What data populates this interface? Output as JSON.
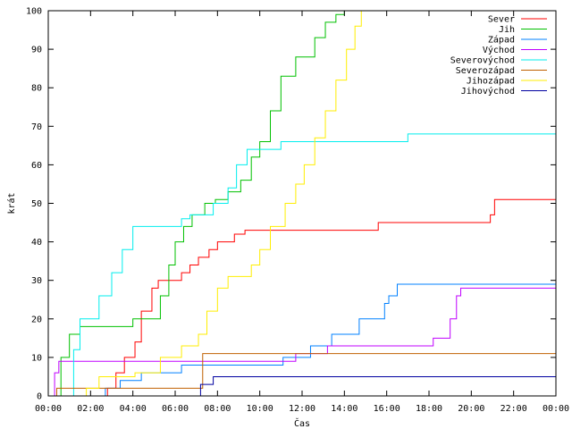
{
  "chart_data": {
    "type": "line",
    "title": "",
    "xlabel": "Čas",
    "ylabel": "krát",
    "xlim": [
      0,
      24
    ],
    "ylim": [
      0,
      100
    ],
    "x_ticks": [
      "00:00",
      "02:00",
      "04:00",
      "06:00",
      "08:00",
      "10:00",
      "12:00",
      "14:00",
      "16:00",
      "18:00",
      "20:00",
      "22:00",
      "00:00"
    ],
    "y_ticks": [
      "0",
      "10",
      "20",
      "30",
      "40",
      "50",
      "60",
      "70",
      "80",
      "90",
      "100"
    ],
    "grid": false,
    "legend_position": "top-right",
    "series": [
      {
        "name": "Sever",
        "color": "#ff0000",
        "points": [
          [
            0,
            0
          ],
          [
            2.8,
            2
          ],
          [
            3.2,
            6
          ],
          [
            3.6,
            10
          ],
          [
            4.1,
            14
          ],
          [
            4.4,
            22
          ],
          [
            4.9,
            28
          ],
          [
            5.2,
            30
          ],
          [
            6.3,
            32
          ],
          [
            6.7,
            34
          ],
          [
            7.1,
            36
          ],
          [
            7.6,
            38
          ],
          [
            8.0,
            40
          ],
          [
            8.8,
            42
          ],
          [
            9.3,
            43
          ],
          [
            15.6,
            45
          ],
          [
            20.9,
            47
          ],
          [
            21.1,
            51
          ],
          [
            24,
            51
          ]
        ]
      },
      {
        "name": "Jih",
        "color": "#00c000",
        "points": [
          [
            0,
            0
          ],
          [
            0.6,
            10
          ],
          [
            1.0,
            16
          ],
          [
            1.5,
            18
          ],
          [
            4.0,
            20
          ],
          [
            5.3,
            26
          ],
          [
            5.7,
            34
          ],
          [
            6.0,
            40
          ],
          [
            6.4,
            44
          ],
          [
            6.8,
            47
          ],
          [
            7.4,
            50
          ],
          [
            7.9,
            51
          ],
          [
            8.5,
            53
          ],
          [
            9.1,
            56
          ],
          [
            9.6,
            62
          ],
          [
            10.0,
            66
          ],
          [
            10.5,
            74
          ],
          [
            11.0,
            83
          ],
          [
            11.7,
            88
          ],
          [
            12.6,
            93
          ],
          [
            13.1,
            97
          ],
          [
            13.6,
            99
          ],
          [
            14.0,
            100
          ],
          [
            24,
            100
          ]
        ]
      },
      {
        "name": "Západ",
        "color": "#0080ff",
        "points": [
          [
            0,
            0
          ],
          [
            2.7,
            2
          ],
          [
            3.4,
            4
          ],
          [
            4.4,
            6
          ],
          [
            6.3,
            8
          ],
          [
            11.1,
            10
          ],
          [
            12.4,
            13
          ],
          [
            13.4,
            16
          ],
          [
            14.7,
            20
          ],
          [
            15.9,
            24
          ],
          [
            16.1,
            26
          ],
          [
            16.5,
            29
          ],
          [
            24,
            29
          ]
        ]
      },
      {
        "name": "Východ",
        "color": "#c000ff",
        "points": [
          [
            0,
            0
          ],
          [
            0.3,
            6
          ],
          [
            0.5,
            9
          ],
          [
            11.7,
            11
          ],
          [
            13.2,
            13
          ],
          [
            18.2,
            15
          ],
          [
            19.0,
            20
          ],
          [
            19.3,
            26
          ],
          [
            19.5,
            28
          ],
          [
            24,
            28
          ]
        ]
      },
      {
        "name": "Severovýchod",
        "color": "#00eeee",
        "points": [
          [
            0,
            0
          ],
          [
            1.2,
            12
          ],
          [
            1.5,
            20
          ],
          [
            2.4,
            26
          ],
          [
            3.0,
            32
          ],
          [
            3.5,
            38
          ],
          [
            4.0,
            44
          ],
          [
            6.3,
            46
          ],
          [
            6.7,
            47
          ],
          [
            7.8,
            50
          ],
          [
            8.5,
            54
          ],
          [
            8.9,
            60
          ],
          [
            9.4,
            64
          ],
          [
            11.0,
            66
          ],
          [
            17.0,
            68
          ],
          [
            24,
            68
          ]
        ]
      },
      {
        "name": "Severozápad",
        "color": "#c06000",
        "points": [
          [
            0,
            0
          ],
          [
            0.4,
            2
          ],
          [
            7.3,
            11
          ],
          [
            24,
            11
          ]
        ]
      },
      {
        "name": "Jihozápad",
        "color": "#ffee00",
        "points": [
          [
            0,
            0
          ],
          [
            1.8,
            2
          ],
          [
            2.4,
            5
          ],
          [
            4.1,
            6
          ],
          [
            5.3,
            10
          ],
          [
            6.3,
            13
          ],
          [
            7.1,
            16
          ],
          [
            7.5,
            22
          ],
          [
            8.0,
            28
          ],
          [
            8.5,
            31
          ],
          [
            9.6,
            34
          ],
          [
            10.0,
            38
          ],
          [
            10.5,
            44
          ],
          [
            11.2,
            50
          ],
          [
            11.7,
            55
          ],
          [
            12.1,
            60
          ],
          [
            12.6,
            67
          ],
          [
            13.1,
            74
          ],
          [
            13.6,
            82
          ],
          [
            14.1,
            90
          ],
          [
            14.5,
            96
          ],
          [
            14.8,
            100
          ],
          [
            24,
            100
          ]
        ]
      },
      {
        "name": "Jihovýchod",
        "color": "#0000a0",
        "points": [
          [
            0,
            0
          ],
          [
            7.2,
            3
          ],
          [
            7.8,
            5
          ],
          [
            24,
            5
          ]
        ]
      }
    ]
  }
}
